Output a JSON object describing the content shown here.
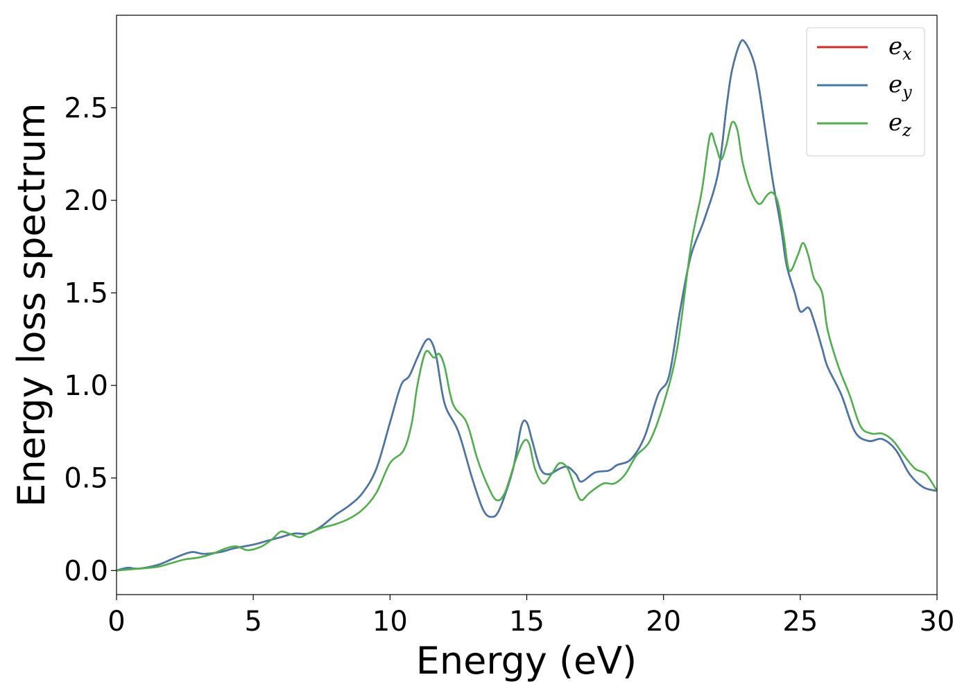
{
  "chart_data": {
    "type": "line",
    "title": "",
    "xlabel": "Energy (eV)",
    "ylabel": "Energy loss spectrum",
    "xlim": [
      0,
      30
    ],
    "ylim": [
      -0.13,
      3.0
    ],
    "xticks": [
      0,
      5,
      10,
      15,
      20,
      25,
      30
    ],
    "xtick_labels": [
      "0",
      "5",
      "10",
      "15",
      "20",
      "25",
      "30"
    ],
    "yticks": [
      0.0,
      0.5,
      1.0,
      1.5,
      2.0,
      2.5
    ],
    "ytick_labels": [
      "0.0",
      "0.5",
      "1.0",
      "1.5",
      "2.0",
      "2.5"
    ],
    "grid": false,
    "legend_position": "top-right",
    "series": [
      {
        "name": "e",
        "name_sub": "x",
        "color": "#d62728",
        "x": [
          0,
          0.4,
          0.8,
          1.5,
          2.0,
          2.5,
          2.8,
          3.2,
          3.8,
          4.3,
          5.0,
          5.5,
          6.0,
          6.5,
          7.0,
          7.5,
          8.0,
          8.5,
          9.0,
          9.5,
          10.0,
          10.4,
          10.7,
          11.0,
          11.3,
          11.5,
          11.7,
          12.0,
          12.5,
          13.0,
          13.4,
          13.7,
          14.0,
          14.5,
          14.8,
          15.0,
          15.2,
          15.5,
          15.8,
          16.2,
          16.5,
          16.8,
          17.0,
          17.5,
          18.0,
          18.3,
          18.8,
          19.3,
          19.8,
          20.2,
          20.6,
          21.0,
          21.5,
          22.0,
          22.3,
          22.5,
          22.8,
          23.0,
          23.3,
          23.5,
          23.8,
          24.0,
          24.3,
          24.5,
          24.8,
          25.0,
          25.3,
          25.5,
          25.8,
          26.0,
          26.5,
          27.0,
          27.5,
          28.0,
          28.5,
          29.0,
          29.5,
          30.0
        ],
        "y": [
          0.0,
          0.015,
          0.01,
          0.03,
          0.06,
          0.09,
          0.1,
          0.09,
          0.1,
          0.12,
          0.14,
          0.16,
          0.18,
          0.2,
          0.2,
          0.24,
          0.3,
          0.35,
          0.42,
          0.55,
          0.8,
          1.0,
          1.05,
          1.15,
          1.24,
          1.24,
          1.15,
          0.9,
          0.75,
          0.5,
          0.33,
          0.29,
          0.33,
          0.55,
          0.78,
          0.8,
          0.7,
          0.55,
          0.52,
          0.55,
          0.56,
          0.52,
          0.48,
          0.53,
          0.54,
          0.57,
          0.6,
          0.72,
          0.95,
          1.05,
          1.4,
          1.7,
          1.9,
          2.15,
          2.5,
          2.7,
          2.85,
          2.85,
          2.75,
          2.6,
          2.3,
          2.1,
          1.85,
          1.65,
          1.5,
          1.4,
          1.42,
          1.35,
          1.2,
          1.1,
          0.95,
          0.75,
          0.7,
          0.71,
          0.65,
          0.52,
          0.45,
          0.43
        ]
      },
      {
        "name": "e",
        "name_sub": "y",
        "color": "#4477aa",
        "x": [
          0,
          0.4,
          0.8,
          1.5,
          2.0,
          2.5,
          2.8,
          3.2,
          3.8,
          4.3,
          5.0,
          5.5,
          6.0,
          6.5,
          7.0,
          7.5,
          8.0,
          8.5,
          9.0,
          9.5,
          10.0,
          10.4,
          10.7,
          11.0,
          11.3,
          11.5,
          11.7,
          12.0,
          12.5,
          13.0,
          13.4,
          13.7,
          14.0,
          14.5,
          14.8,
          15.0,
          15.2,
          15.5,
          15.8,
          16.2,
          16.5,
          16.8,
          17.0,
          17.5,
          18.0,
          18.3,
          18.8,
          19.3,
          19.8,
          20.2,
          20.6,
          21.0,
          21.5,
          22.0,
          22.3,
          22.5,
          22.8,
          23.0,
          23.3,
          23.5,
          23.8,
          24.0,
          24.3,
          24.5,
          24.8,
          25.0,
          25.3,
          25.5,
          25.8,
          26.0,
          26.5,
          27.0,
          27.5,
          28.0,
          28.5,
          29.0,
          29.5,
          30.0
        ],
        "y": [
          0.0,
          0.015,
          0.01,
          0.03,
          0.06,
          0.09,
          0.1,
          0.09,
          0.1,
          0.12,
          0.14,
          0.16,
          0.18,
          0.2,
          0.2,
          0.24,
          0.3,
          0.35,
          0.42,
          0.55,
          0.8,
          1.0,
          1.05,
          1.15,
          1.24,
          1.24,
          1.15,
          0.9,
          0.75,
          0.5,
          0.33,
          0.29,
          0.33,
          0.55,
          0.78,
          0.8,
          0.7,
          0.55,
          0.52,
          0.55,
          0.56,
          0.52,
          0.48,
          0.53,
          0.54,
          0.57,
          0.6,
          0.72,
          0.95,
          1.05,
          1.4,
          1.7,
          1.9,
          2.15,
          2.5,
          2.7,
          2.85,
          2.85,
          2.75,
          2.6,
          2.3,
          2.1,
          1.85,
          1.65,
          1.5,
          1.4,
          1.42,
          1.35,
          1.2,
          1.1,
          0.95,
          0.75,
          0.7,
          0.71,
          0.65,
          0.52,
          0.45,
          0.43
        ]
      },
      {
        "name": "e",
        "name_sub": "z",
        "color": "#4daf4a",
        "x": [
          0,
          0.8,
          1.5,
          2.0,
          2.5,
          3.0,
          3.5,
          4.0,
          4.4,
          4.8,
          5.3,
          5.7,
          6.0,
          6.3,
          6.7,
          7.0,
          7.5,
          8.0,
          8.5,
          9.0,
          9.5,
          10.0,
          10.5,
          10.8,
          11.0,
          11.3,
          11.6,
          11.8,
          12.0,
          12.3,
          12.8,
          13.2,
          13.6,
          13.9,
          14.2,
          14.6,
          14.9,
          15.1,
          15.3,
          15.6,
          15.9,
          16.2,
          16.5,
          16.8,
          17.0,
          17.3,
          17.8,
          18.2,
          18.6,
          19.0,
          19.5,
          20.0,
          20.5,
          21.0,
          21.4,
          21.7,
          21.9,
          22.1,
          22.3,
          22.5,
          22.7,
          22.9,
          23.2,
          23.5,
          23.8,
          24.0,
          24.2,
          24.4,
          24.6,
          24.9,
          25.1,
          25.3,
          25.5,
          25.8,
          26.0,
          26.4,
          26.8,
          27.2,
          27.6,
          28.0,
          28.4,
          28.8,
          29.2,
          29.6,
          30.0
        ],
        "y": [
          0.0,
          0.01,
          0.02,
          0.04,
          0.06,
          0.07,
          0.09,
          0.12,
          0.13,
          0.11,
          0.13,
          0.17,
          0.21,
          0.2,
          0.18,
          0.2,
          0.23,
          0.25,
          0.28,
          0.33,
          0.42,
          0.58,
          0.65,
          0.8,
          1.0,
          1.18,
          1.15,
          1.17,
          1.1,
          0.9,
          0.8,
          0.6,
          0.45,
          0.38,
          0.42,
          0.6,
          0.7,
          0.68,
          0.55,
          0.47,
          0.52,
          0.58,
          0.55,
          0.43,
          0.38,
          0.42,
          0.47,
          0.47,
          0.52,
          0.62,
          0.7,
          0.9,
          1.2,
          1.75,
          2.05,
          2.35,
          2.3,
          2.22,
          2.3,
          2.42,
          2.38,
          2.2,
          2.05,
          1.98,
          2.03,
          2.04,
          1.98,
          1.8,
          1.62,
          1.7,
          1.77,
          1.7,
          1.58,
          1.5,
          1.3,
          1.1,
          0.95,
          0.78,
          0.74,
          0.74,
          0.7,
          0.62,
          0.55,
          0.52,
          0.43
        ]
      }
    ]
  }
}
